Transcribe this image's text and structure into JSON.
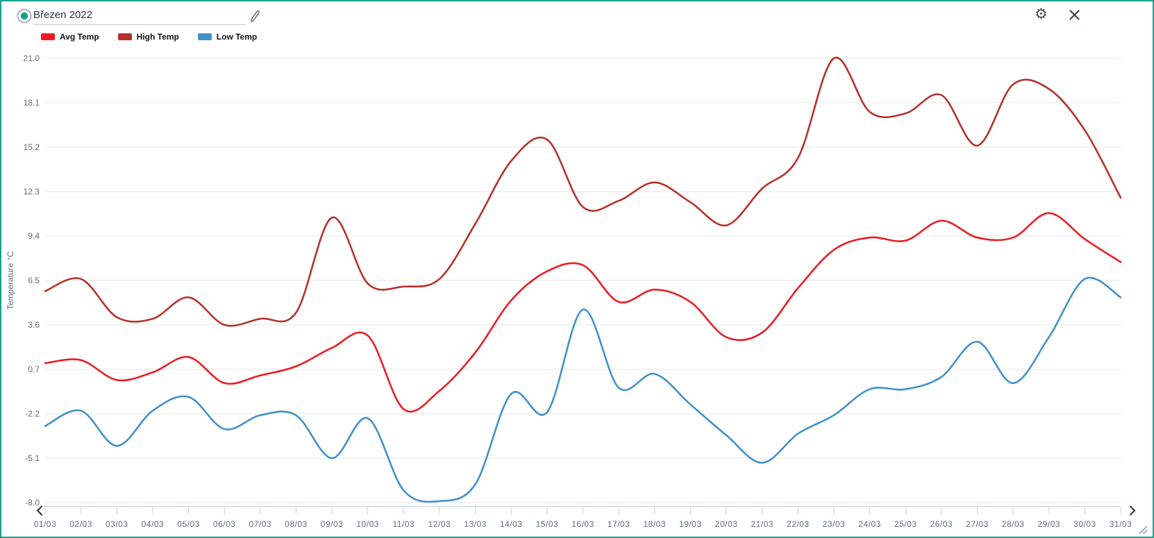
{
  "header": {
    "title_value": "Březen 2022",
    "status_icon": "teal-radio-dot",
    "edit_icon": "pencil-icon",
    "settings_icon": "gear-icon",
    "close_icon": "close-icon",
    "accent_color": "#15a287"
  },
  "chart_data": {
    "type": "line",
    "smoothed": true,
    "categories": [
      "01/03",
      "02/03",
      "03/03",
      "04/03",
      "05/03",
      "06/03",
      "07/03",
      "08/03",
      "09/03",
      "10/03",
      "11/03",
      "12/03",
      "13/03",
      "14/03",
      "15/03",
      "16/03",
      "17/03",
      "18/03",
      "19/03",
      "20/03",
      "21/03",
      "22/03",
      "23/03",
      "24/03",
      "25/03",
      "26/03",
      "27/03",
      "28/03",
      "29/03",
      "30/03",
      "31/03"
    ],
    "series": [
      {
        "name": "Avg Temp",
        "color": "#ee1b24",
        "values": [
          1.1,
          1.3,
          0.0,
          0.5,
          1.5,
          -0.2,
          0.3,
          0.9,
          2.1,
          2.9,
          -1.9,
          -0.7,
          1.8,
          5.2,
          7.1,
          7.5,
          5.1,
          5.9,
          5.1,
          2.8,
          3.1,
          6.0,
          8.5,
          9.3,
          9.1,
          10.4,
          9.3,
          9.3,
          10.9,
          9.2,
          7.7
        ]
      },
      {
        "name": "High Temp",
        "color": "#b5312c",
        "values": [
          5.8,
          6.6,
          4.1,
          4.0,
          5.4,
          3.6,
          4.0,
          4.4,
          10.6,
          6.3,
          6.1,
          6.6,
          10.2,
          14.3,
          15.7,
          11.3,
          11.7,
          12.9,
          11.6,
          10.1,
          12.5,
          14.5,
          21.0,
          17.5,
          17.4,
          18.6,
          15.3,
          19.3,
          19.0,
          16.3,
          11.9
        ]
      },
      {
        "name": "Low Temp",
        "color": "#4191c9",
        "values": [
          -3.0,
          -2.0,
          -4.3,
          -2.0,
          -1.1,
          -3.2,
          -2.3,
          -2.3,
          -5.1,
          -2.5,
          -7.2,
          -7.9,
          -6.8,
          -0.9,
          -2.1,
          4.6,
          -0.5,
          0.4,
          -1.6,
          -3.6,
          -5.4,
          -3.5,
          -2.3,
          -0.6,
          -0.6,
          0.2,
          2.5,
          -0.2,
          2.8,
          6.6,
          5.4
        ]
      }
    ],
    "xlabel": "",
    "ylabel": "Temperature °C",
    "yticks": [
      "21.0",
      "18.1",
      "15.2",
      "12.3",
      "9.4",
      "6.5",
      "3.6",
      "0.7",
      "-2.2",
      "-5.1",
      "-8.0"
    ],
    "ylim": [
      -8.0,
      21.0
    ],
    "grid": true,
    "legend_position": "top-left",
    "axis_text_color": "#5f6d73",
    "grid_color": "#e6e6e6",
    "tick_strip_color": "#c4d1e0"
  },
  "scrollbar": {
    "left_arrow": "chevron-left-icon",
    "right_arrow": "chevron-right-icon"
  }
}
